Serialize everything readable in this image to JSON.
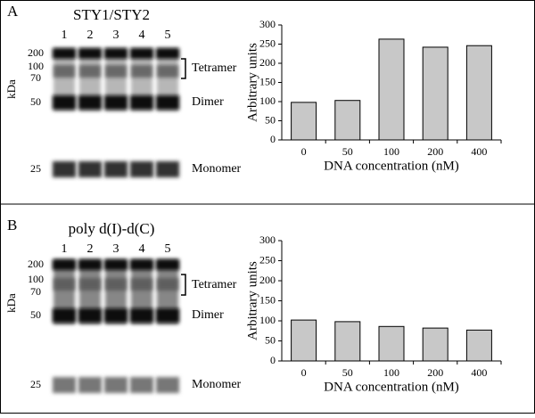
{
  "chart_data": [
    {
      "type": "bar",
      "panel": "A",
      "gel": {
        "title": "STY1/STY2",
        "lanes": [
          "1",
          "2",
          "3",
          "4",
          "5"
        ],
        "unit": "kDa",
        "markers": [
          "200",
          "100",
          "70",
          "50",
          "25"
        ],
        "bands": [
          "Tetramer",
          "Dimer",
          "Monomer"
        ]
      },
      "categories": [
        "0",
        "50",
        "100",
        "200",
        "400"
      ],
      "values": [
        98,
        103,
        263,
        242,
        246
      ],
      "color": "#c8c8c8",
      "xlabel": "DNA concentration (nM)",
      "ylabel": "Arbitrary units",
      "ylim": [
        0,
        300
      ],
      "yticks": [
        0,
        50,
        100,
        150,
        200,
        250,
        300
      ]
    },
    {
      "type": "bar",
      "panel": "B",
      "gel": {
        "title": "poly d(I)-d(C)",
        "lanes": [
          "1",
          "2",
          "3",
          "4",
          "5"
        ],
        "unit": "kDa",
        "markers": [
          "200",
          "100",
          "70",
          "50",
          "25"
        ],
        "bands": [
          "Tetramer",
          "Dimer",
          "Monomer"
        ]
      },
      "categories": [
        "0",
        "50",
        "100",
        "200",
        "400"
      ],
      "values": [
        102,
        98,
        86,
        82,
        77
      ],
      "color": "#c8c8c8",
      "xlabel": "DNA concentration (nM)",
      "ylabel": "Arbitrary units",
      "ylim": [
        0,
        300
      ],
      "yticks": [
        0,
        50,
        100,
        150,
        200,
        250,
        300
      ]
    }
  ]
}
